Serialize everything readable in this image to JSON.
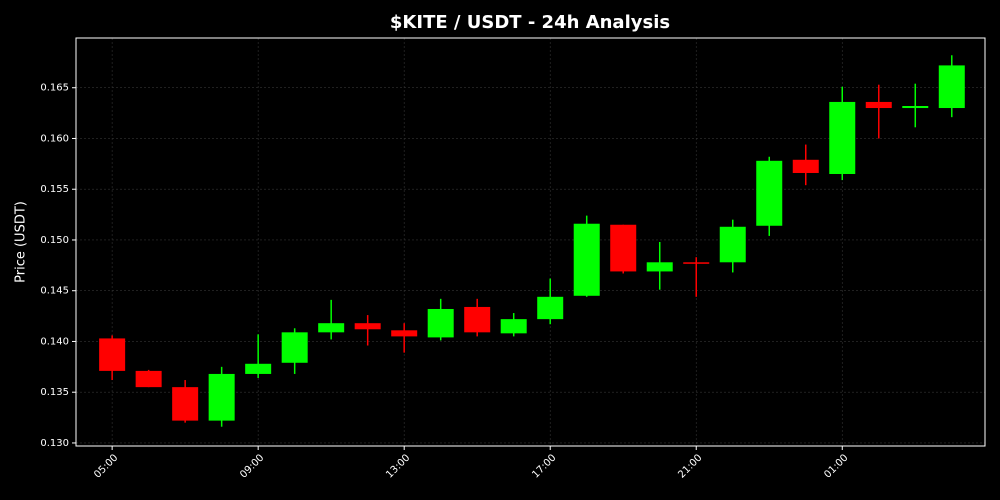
{
  "chart_data": {
    "type": "candlestick",
    "title": "$KITE / USDT - 24h Analysis",
    "y_label": "Price (USDT)",
    "categories": [
      "05:00",
      null,
      null,
      null,
      "09:00",
      null,
      null,
      null,
      "13:00",
      null,
      null,
      null,
      "17:00",
      null,
      null,
      null,
      "21:00",
      null,
      null,
      null,
      "01:00",
      null,
      null,
      null
    ],
    "open": [
      0.1403,
      0.1371,
      0.1355,
      0.1322,
      0.1368,
      0.1379,
      0.1409,
      0.1418,
      0.1411,
      0.1404,
      0.1434,
      0.1408,
      0.1422,
      0.1445,
      0.1515,
      0.1469,
      0.1478,
      0.1478,
      0.1514,
      0.1579,
      0.1565,
      0.1636,
      0.163,
      0.163
    ],
    "high": [
      0.1406,
      0.1372,
      0.1362,
      0.1375,
      0.1407,
      0.1413,
      0.1441,
      0.1426,
      0.1418,
      0.1442,
      0.1442,
      0.1428,
      0.1462,
      0.1524,
      0.1515,
      0.1498,
      0.1483,
      0.152,
      0.1582,
      0.1594,
      0.1651,
      0.1653,
      0.1654,
      0.1682
    ],
    "low": [
      0.1362,
      0.1355,
      0.132,
      0.1316,
      0.1364,
      0.1368,
      0.1402,
      0.1396,
      0.1389,
      0.1401,
      0.1405,
      0.1405,
      0.1417,
      0.1444,
      0.1467,
      0.1451,
      0.1444,
      0.1468,
      0.1504,
      0.1554,
      0.1559,
      0.16,
      0.1611,
      0.1621
    ],
    "close": [
      0.1371,
      0.1355,
      0.1322,
      0.1368,
      0.1378,
      0.1409,
      0.1418,
      0.1412,
      0.1405,
      0.1432,
      0.1409,
      0.1422,
      0.1444,
      0.1516,
      0.1469,
      0.1478,
      0.1477,
      0.1513,
      0.1578,
      0.1566,
      0.1636,
      0.163,
      0.1632,
      0.1672
    ],
    "up_color": "#00ff00",
    "down_color": "#ff0000",
    "ylim": [
      0.1297,
      0.1699
    ],
    "yticks": [
      {
        "value": 0.13,
        "label": "0.130"
      },
      0.135,
      {
        "value": 0.14,
        "label": "0.140"
      },
      0.145,
      {
        "value": 0.15,
        "label": "0.150"
      },
      0.155,
      {
        "value": 0.16,
        "label": "0.160"
      },
      0.165
    ],
    "grid": true
  }
}
